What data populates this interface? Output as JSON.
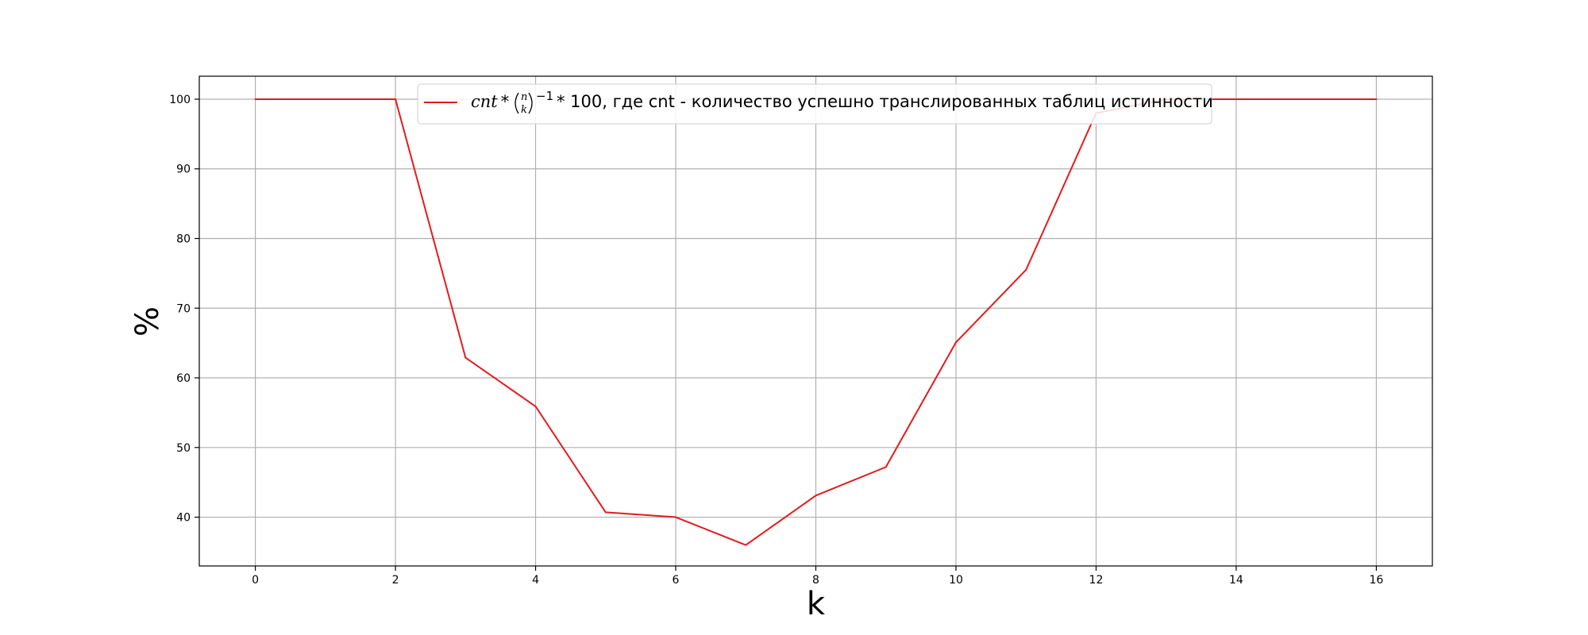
{
  "chart_data": {
    "type": "line",
    "title": "",
    "xlabel": "k",
    "ylabel": "%",
    "xlim": [
      -0.8,
      16.8
    ],
    "ylim": [
      33.0,
      103.3
    ],
    "xticks": [
      "0",
      "2",
      "4",
      "6",
      "8",
      "10",
      "12",
      "14",
      "16"
    ],
    "yticks": [
      "40",
      "50",
      "60",
      "70",
      "80",
      "90",
      "100"
    ],
    "grid": true,
    "legend_position": "upper center",
    "series": [
      {
        "name": "cnt * (n k)^−1 * 100, где cnt - количество успешно транслированных таблиц истинности",
        "color": "#e41a1c",
        "x": [
          0,
          1,
          2,
          3,
          4,
          5,
          6,
          7,
          8,
          9,
          10,
          11,
          12,
          13,
          14,
          15,
          16
        ],
        "y": [
          100,
          100,
          100,
          62.9,
          55.9,
          40.7,
          40.0,
          36.0,
          43.1,
          47.2,
          65.1,
          75.5,
          98.0,
          100,
          100,
          100,
          100
        ]
      }
    ],
    "legend": {
      "formula_cnt": "cnt",
      "formula_star1": "*",
      "formula_n": "n",
      "formula_k": "k",
      "formula_exp": "−1",
      "formula_rest": "* 100, где cnt - количество успешно транслированных таблиц истинности"
    }
  }
}
